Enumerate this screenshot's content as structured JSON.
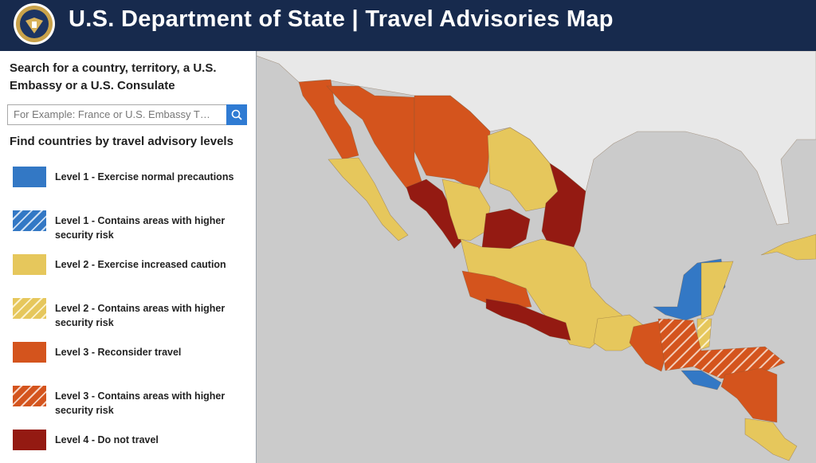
{
  "header": {
    "title": "U.S. Department of State | Travel Advisories Map"
  },
  "search": {
    "prompt": "Search for a country, territory, a U.S. Embassy or a U.S. Consulate",
    "placeholder": "For Example: France or U.S. Embassy T…"
  },
  "legend": {
    "heading": "Find countries by travel advisory levels",
    "items": [
      "Level 1 - Exercise normal precautions",
      "Level 1 - Contains areas with higher security risk",
      "Level 2 - Exercise increased caution",
      "Level 2 - Contains areas with higher security risk",
      "Level 3 - Reconsider travel",
      "Level 3 - Contains areas with higher security risk",
      "Level 4 - Do not travel"
    ]
  }
}
